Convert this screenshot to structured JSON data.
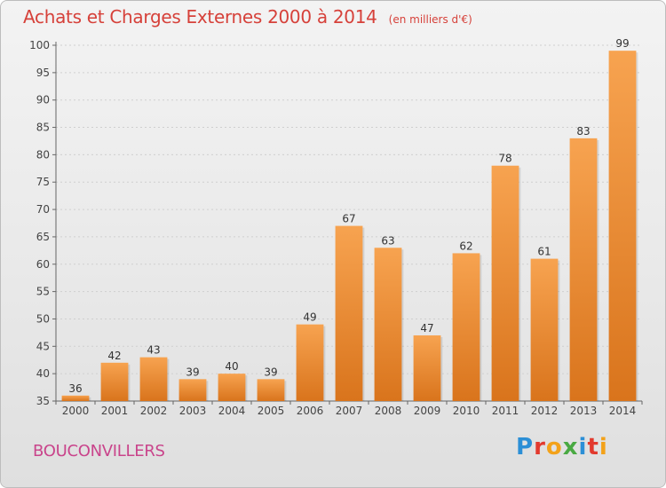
{
  "header": {
    "title": "Achats et Charges Externes 2000 à 2014",
    "subtitle": "(en milliers d'€)"
  },
  "footer": {
    "place": "BOUCONVILLERS",
    "logo_text": "Proxiti",
    "logo_colors": [
      "#2c8fd6",
      "#e23a2e",
      "#f3a21a",
      "#49a942",
      "#2c8fd6",
      "#e23a2e",
      "#f3a21a"
    ]
  },
  "chart_data": {
    "type": "bar",
    "title": "Achats et Charges Externes 2000 à 2014",
    "subtitle": "(en milliers d'€)",
    "categories": [
      "2000",
      "2001",
      "2002",
      "2003",
      "2004",
      "2005",
      "2006",
      "2007",
      "2008",
      "2009",
      "2010",
      "2011",
      "2012",
      "2013",
      "2014"
    ],
    "values": [
      36,
      42,
      43,
      39,
      40,
      39,
      49,
      67,
      63,
      47,
      62,
      78,
      61,
      83,
      99
    ],
    "ylim": [
      35,
      100
    ],
    "yticks": [
      35,
      40,
      45,
      50,
      55,
      60,
      65,
      70,
      75,
      80,
      85,
      90,
      95,
      100
    ],
    "grid": true,
    "bar_color_top": "#f7a350",
    "bar_color_bottom": "#d9741c"
  }
}
